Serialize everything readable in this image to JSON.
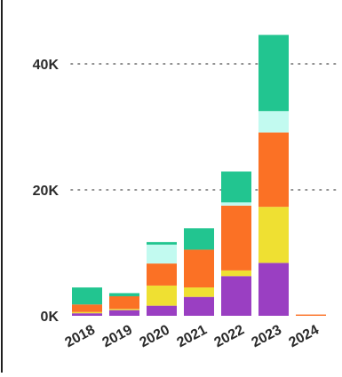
{
  "chart_data": {
    "type": "bar",
    "stacked": true,
    "categories": [
      "2018",
      "2019",
      "2020",
      "2021",
      "2022",
      "2023",
      "2024"
    ],
    "series": [
      {
        "color": "#9a3fc2",
        "values": [
          400,
          900,
          1600,
          3000,
          6300,
          8400,
          0
        ]
      },
      {
        "color": "#efe032",
        "values": [
          200,
          200,
          3200,
          1500,
          900,
          8900,
          0
        ]
      },
      {
        "color": "#fb7125",
        "values": [
          1200,
          2000,
          3500,
          6000,
          10300,
          11800,
          200
        ]
      },
      {
        "color": "#c2faf0",
        "values": [
          0,
          0,
          3000,
          0,
          500,
          3400,
          0
        ]
      },
      {
        "color": "#22c590",
        "values": [
          2700,
          500,
          400,
          3400,
          4900,
          12100,
          0
        ]
      }
    ],
    "y_ticks": [
      {
        "value": 0,
        "label": "0K"
      },
      {
        "value": 20000,
        "label": "20K"
      },
      {
        "value": 40000,
        "label": "40K"
      }
    ],
    "ylim": [
      0,
      47000
    ],
    "grid": "horizontal-dotted",
    "legend": "none",
    "title": "",
    "xlabel": "",
    "ylabel": ""
  }
}
